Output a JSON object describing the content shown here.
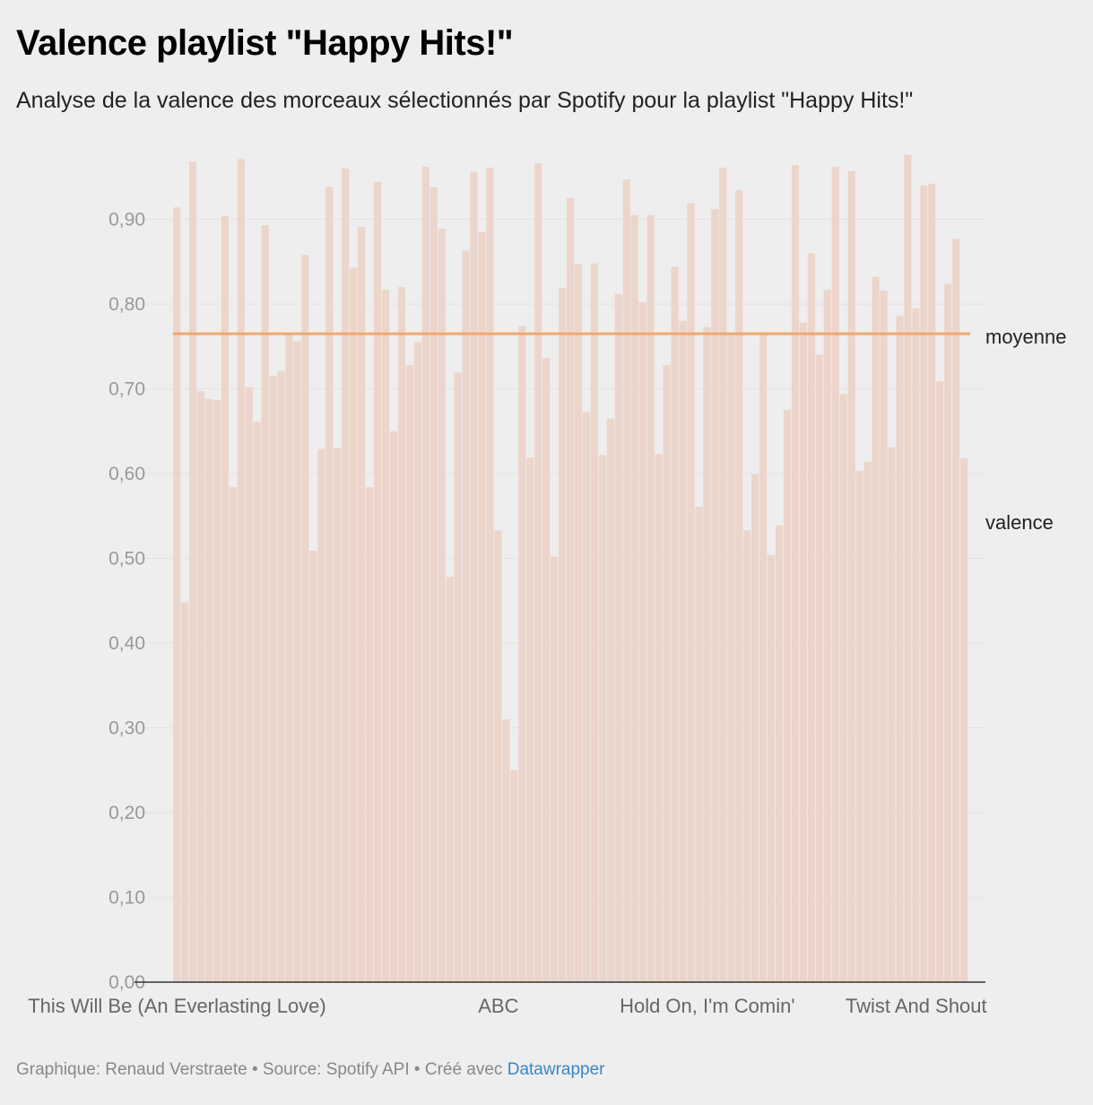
{
  "header": {
    "title": "Valence playlist \"Happy Hits!\"",
    "subtitle": "Analyse de la valence des morceaux sélectionnés par Spotify pour la playlist \"Happy Hits!\""
  },
  "footer": {
    "credit": "Graphique: Renaud Verstraete • Source: Spotify API • Créé avec ",
    "link_text": "Datawrapper"
  },
  "colors": {
    "bar": "#ecd5cb",
    "mean_line": "#f0a86e",
    "grid": "#e3e3e3",
    "axis": "#333333",
    "tick_label": "#999999",
    "x_label": "#666666",
    "series_label": "#222222"
  },
  "chart_data": {
    "type": "bar",
    "ylim": [
      0,
      1
    ],
    "yticks": [
      "0,00",
      "0,10",
      "0,20",
      "0,30",
      "0,40",
      "0,50",
      "0,60",
      "0,70",
      "0,80",
      "0,90"
    ],
    "ytick_values": [
      0,
      0.1,
      0.2,
      0.3,
      0.4,
      0.5,
      0.6,
      0.7,
      0.8,
      0.9
    ],
    "grid": true,
    "x_labels": [
      {
        "label": "This Will Be (An Everlasting Love)",
        "index": 0
      },
      {
        "label": "ABC",
        "index": 40
      },
      {
        "label": "Hold On, I'm Comin'",
        "index": 66
      },
      {
        "label": "Twist And Shout",
        "index": 92
      }
    ],
    "series": [
      {
        "name": "valence",
        "values": [
          0.914,
          0.448,
          0.968,
          0.697,
          0.688,
          0.687,
          0.904,
          0.584,
          0.971,
          0.702,
          0.661,
          0.893,
          0.715,
          0.721,
          0.765,
          0.756,
          0.858,
          0.509,
          0.629,
          0.938,
          0.63,
          0.96,
          0.843,
          0.891,
          0.584,
          0.944,
          0.817,
          0.65,
          0.82,
          0.728,
          0.755,
          0.962,
          0.938,
          0.889,
          0.478,
          0.719,
          0.863,
          0.956,
          0.885,
          0.961,
          0.533,
          0.31,
          0.25,
          0.774,
          0.619,
          0.966,
          0.736,
          0.502,
          0.819,
          0.925,
          0.847,
          0.673,
          0.848,
          0.622,
          0.665,
          0.812,
          0.947,
          0.905,
          0.802,
          0.905,
          0.623,
          0.728,
          0.844,
          0.78,
          0.919,
          0.561,
          0.773,
          0.912,
          0.961,
          0.766,
          0.934,
          0.533,
          0.599,
          0.767,
          0.504,
          0.539,
          0.675,
          0.964,
          0.778,
          0.86,
          0.74,
          0.817,
          0.962,
          0.694,
          0.957,
          0.603,
          0.614,
          0.832,
          0.816,
          0.631,
          0.786,
          0.976,
          0.795,
          0.94,
          0.942,
          0.709,
          0.824,
          0.877,
          0.618
        ]
      },
      {
        "name": "moyenne",
        "value": 0.765
      }
    ],
    "series_labels": {
      "mean": "moyenne",
      "valence": "valence"
    }
  }
}
